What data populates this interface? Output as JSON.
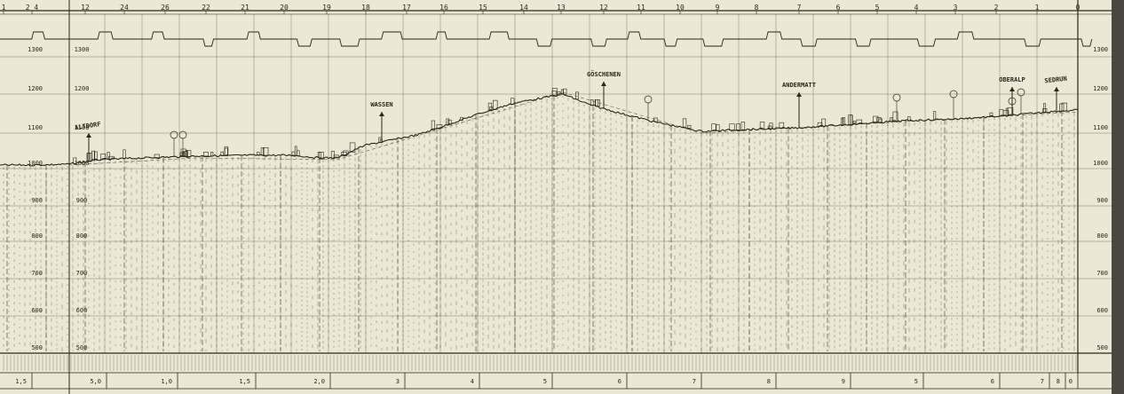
{
  "sheet": {
    "paper_color": "#ece7d6",
    "ink_color": "#2a261e",
    "margin_color": "#4a4640"
  },
  "top_station_numbers": [
    "1",
    "2 4",
    "12",
    "24",
    "26",
    "22",
    "21",
    "20",
    "19",
    "18",
    "17",
    "16",
    "15",
    "14",
    "13",
    "12",
    "11",
    "10",
    "9",
    "8",
    "7",
    "6",
    "5",
    "4",
    "3",
    "2",
    "1",
    "0"
  ],
  "places": [
    {
      "name": "ALTDORF",
      "icon": "church-marker-icon"
    },
    {
      "name": "WASSEN",
      "icon": "church-marker-icon"
    },
    {
      "name": "GÖSCHENEN",
      "icon": "church-marker-icon"
    },
    {
      "name": "ANDERMATT",
      "icon": "church-marker-icon"
    },
    {
      "name": "OBERALP",
      "icon": "church-marker-icon"
    },
    {
      "name": "SEDRUN",
      "icon": "church-marker-icon"
    }
  ],
  "left_scale_labels": [
    "1300",
    "1200",
    "1100",
    "1000",
    "900",
    "800",
    "700",
    "600",
    "500"
  ],
  "right_scale_labels": [
    "1300",
    "1200",
    "1100",
    "1000",
    "900",
    "800",
    "700",
    "600",
    "500"
  ],
  "bottom_km_labels": [
    "1,5",
    "5,0",
    "1,0",
    "1,5",
    "2,0",
    "3",
    "4",
    "5",
    "6",
    "7",
    "8",
    "9",
    "5",
    "6",
    "7",
    "8",
    "0"
  ]
}
